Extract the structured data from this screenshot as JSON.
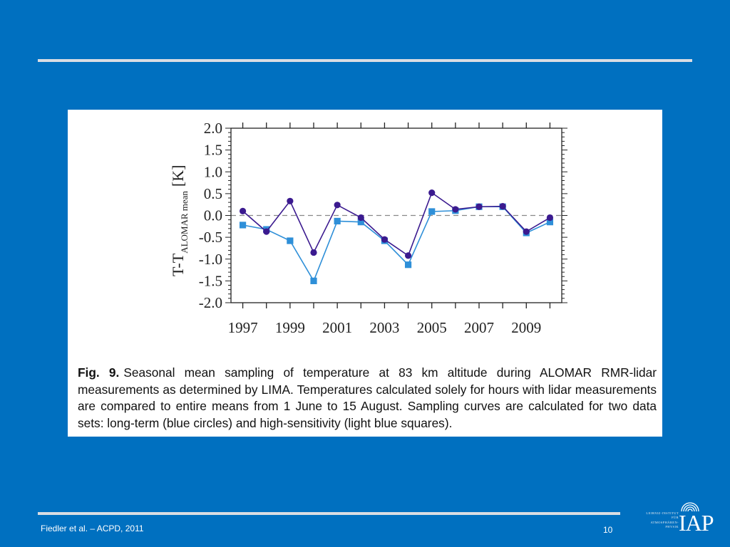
{
  "chart_data": {
    "type": "line",
    "xlabel": "",
    "ylabel_main": "T-T",
    "ylabel_sub": "ALOMAR mean",
    "ylabel_unit": "[K]",
    "xlim": [
      1996.5,
      2010.5
    ],
    "ylim": [
      -2.0,
      2.0
    ],
    "x_ticks": [
      1997,
      1998,
      1999,
      2000,
      2001,
      2002,
      2003,
      2004,
      2005,
      2006,
      2007,
      2008,
      2009,
      2010
    ],
    "x_tick_labels": [
      "1997",
      "1999",
      "2001",
      "2003",
      "2005",
      "2007",
      "2009"
    ],
    "x_tick_label_years": [
      1997,
      1999,
      2001,
      2003,
      2005,
      2007,
      2009
    ],
    "y_ticks": [
      2.0,
      1.5,
      1.0,
      0.5,
      0.0,
      -0.5,
      -1.0,
      -1.5,
      -2.0
    ],
    "y_tick_labels": [
      "2.0",
      "1.5",
      "1.0",
      "0.5",
      "0.0",
      "-0.5",
      "-1.0",
      "-1.5",
      "-2.0"
    ],
    "zero_line": true,
    "grid": false,
    "x": [
      1997,
      1998,
      1999,
      2000,
      2001,
      2002,
      2003,
      2004,
      2005,
      2006,
      2007,
      2008,
      2009,
      2010
    ],
    "series": [
      {
        "marker": "circle",
        "color": "#3b1a8f",
        "values": [
          0.1,
          -0.37,
          0.33,
          -0.85,
          0.24,
          -0.05,
          -0.55,
          -0.92,
          0.52,
          0.14,
          0.2,
          0.21,
          -0.37,
          -0.05
        ]
      },
      {
        "marker": "square",
        "color": "#2e8fd8",
        "values": [
          -0.22,
          -0.32,
          -0.58,
          -1.5,
          -0.13,
          -0.15,
          -0.58,
          -1.13,
          0.09,
          0.11,
          0.2,
          0.2,
          -0.4,
          -0.15
        ]
      }
    ]
  },
  "caption": {
    "label": "Fig. 9.",
    "text": "Seasonal mean sampling of temperature at 83 km altitude during ALOMAR RMR-lidar measurements as determined by LIMA. Temperatures calculated solely for hours with lidar measurements are compared to entire means from 1 June to 15 August. Sampling curves are calculated for two data sets: long-term (blue circles) and high-sensitivity (light blue squares)."
  },
  "footer": {
    "citation": "Fiedler et al. – ACPD, 2011",
    "page_number": "10"
  },
  "logo": {
    "name": "iap-logo",
    "text": "IAP",
    "lines": [
      "LEIBNIZ-INSTITUT",
      "FÜR",
      "ATMOSPHÄREN-",
      "PHYSIK"
    ]
  },
  "colors": {
    "background": "#0070c0",
    "rule": "#d9dde3",
    "zero_line": "#888888"
  }
}
